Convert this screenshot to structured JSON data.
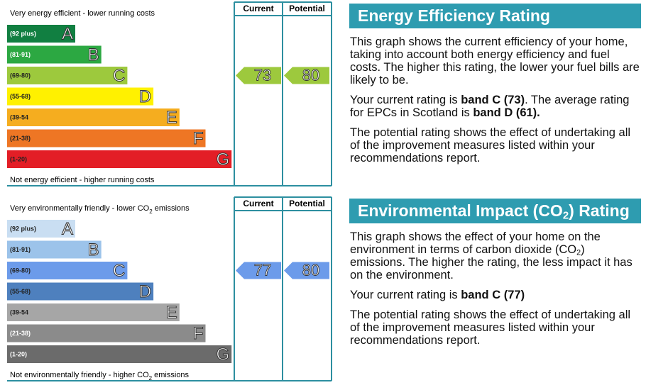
{
  "charts": [
    {
      "top_label": [
        {
          "text": "Very energy efficient - lower running costs"
        }
      ],
      "bottom_label": [
        {
          "text": "Not energy efficient - higher running costs"
        }
      ],
      "headers": [
        "Current",
        "Potential"
      ],
      "bands": [
        {
          "range": "(92 plus)",
          "letter": "A",
          "color": "#117f41",
          "text_color": "#ffffff"
        },
        {
          "range": "(81-91)",
          "letter": "B",
          "color": "#2ca842",
          "text_color": "#ffffff"
        },
        {
          "range": "(69-80)",
          "letter": "C",
          "color": "#9dc93d",
          "text_color": "#222222"
        },
        {
          "range": "(55-68)",
          "letter": "D",
          "color": "#fff100",
          "text_color": "#222222"
        },
        {
          "range": "(39-54",
          "letter": "E",
          "color": "#f5ad1f",
          "text_color": "#222222"
        },
        {
          "range": "(21-38)",
          "letter": "F",
          "color": "#ee7624",
          "text_color": "#222222"
        },
        {
          "range": "(1-20)",
          "letter": "G",
          "color": "#e31e26",
          "text_color": "#222222"
        }
      ],
      "current": 73,
      "potential": 80
    },
    {
      "top_label": [
        {
          "text": "Very environmentally friendly - lower CO"
        },
        {
          "text": "2",
          "style": "sub"
        },
        {
          "text": " emissions"
        }
      ],
      "bottom_label": [
        {
          "text": "Not environmentally friendly - higher CO"
        },
        {
          "text": "2",
          "style": "sub"
        },
        {
          "text": " emissions"
        }
      ],
      "headers": [
        "Current",
        "Potential"
      ],
      "bands": [
        {
          "range": "(92 plus)",
          "letter": "A",
          "color": "#c9def2",
          "text_color": "#222222"
        },
        {
          "range": "(81-91)",
          "letter": "B",
          "color": "#9cc3ea",
          "text_color": "#222222"
        },
        {
          "range": "(69-80)",
          "letter": "C",
          "color": "#6c9bea",
          "text_color": "#222222"
        },
        {
          "range": "(55-68)",
          "letter": "D",
          "color": "#4e80be",
          "text_color": "#222222"
        },
        {
          "range": "(39-54",
          "letter": "E",
          "color": "#a6a6a6",
          "text_color": "#222222"
        },
        {
          "range": "(21-38)",
          "letter": "F",
          "color": "#8b8b8b",
          "text_color": "#ffffff"
        },
        {
          "range": "(1-20)",
          "letter": "G",
          "color": "#6b6b6b",
          "text_color": "#ffffff"
        }
      ],
      "current": 77,
      "potential": 80
    }
  ],
  "sections": [
    {
      "title": [
        {
          "text": "Energy Efficiency Rating"
        }
      ],
      "paragraphs": [
        [
          {
            "text": "This graph shows the current efficiency of your home, taking into account both energy efficiency and fuel costs. The higher this rating, the lower your fuel bills are likely to be."
          }
        ],
        [
          {
            "text": "Your current rating is "
          },
          {
            "text": "band C (73)",
            "style": "bold"
          },
          {
            "text": ". The average rating for EPCs in Scotland is "
          },
          {
            "text": "band D (61).",
            "style": "bold"
          }
        ],
        [
          {
            "text": "The potential rating shows the effect of undertaking all of the improvement measures listed within your recommendations report."
          }
        ]
      ]
    },
    {
      "title": [
        {
          "text": "Environmental Impact (CO"
        },
        {
          "text": "2",
          "style": "sub"
        },
        {
          "text": ") Rating"
        }
      ],
      "paragraphs": [
        [
          {
            "text": "This graph shows the effect of your home on the environment in terms of carbon dioxide (CO"
          },
          {
            "text": "2",
            "style": "sub"
          },
          {
            "text": ") emissions. The higher the rating, the less impact it has on the environment."
          }
        ],
        [
          {
            "text": "Your current rating is "
          },
          {
            "text": "band C (77)",
            "style": "bold"
          }
        ],
        [
          {
            "text": "The potential rating shows the effect of undertaking all of the improvement measures listed within your recommendations report."
          }
        ]
      ]
    }
  ]
}
